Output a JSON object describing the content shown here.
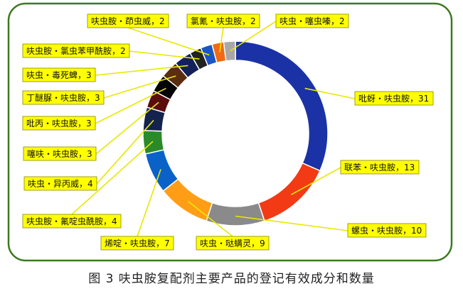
{
  "caption": "图 3   呋虫胺复配剂主要产品的登记有效成分和数量",
  "chart_data": {
    "type": "pie",
    "variant": "donut",
    "title": "",
    "slices": [
      {
        "label": "吡蚜・呋虫胺，31",
        "name": "吡蚜・呋虫胺",
        "value": 31,
        "color": "#1a32a6"
      },
      {
        "label": "联苯・呋虫胺，13",
        "name": "联苯・呋虫胺",
        "value": 13,
        "color": "#f23a14"
      },
      {
        "label": "螺虫・呋虫胺，10",
        "name": "螺虫・呋虫胺",
        "value": 10,
        "color": "#8a8a8a"
      },
      {
        "label": "呋虫・哒螨灵，9",
        "name": "呋虫・哒螨灵",
        "value": 9,
        "color": "#ff9e16"
      },
      {
        "label": "烯啶・呋虫胺，7",
        "name": "烯啶・呋虫胺",
        "value": 7,
        "color": "#0a62c8"
      },
      {
        "label": "呋虫胺・氟啶虫酰胺，4",
        "name": "呋虫胺・氟啶虫酰胺",
        "value": 4,
        "color": "#2a8a2a"
      },
      {
        "label": "呋虫・异丙威，4",
        "name": "呋虫・异丙威",
        "value": 4,
        "color": "#14224e"
      },
      {
        "label": "噻呋・呋虫胺，3",
        "name": "噻呋・呋虫胺",
        "value": 3,
        "color": "#5a0d0d"
      },
      {
        "label": "吡丙・呋虫胺，3",
        "name": "吡丙・呋虫胺",
        "value": 3,
        "color": "#050505"
      },
      {
        "label": "丁醚脲・呋虫胺，3",
        "name": "丁醚脲・呋虫胺",
        "value": 3,
        "color": "#5a2c10"
      },
      {
        "label": "呋虫・毒死蜱，3",
        "name": "呋虫・毒死蜱",
        "value": 3,
        "color": "#14205a"
      },
      {
        "label": "呋虫胺・氯虫苯甲酰胺，2",
        "name": "呋虫胺・氯虫苯甲酰胺",
        "value": 2,
        "color": "#222222"
      },
      {
        "label": "呋虫胺・茚虫威，2",
        "name": "呋虫胺・茚虫威",
        "value": 2,
        "color": "#1a55c8"
      },
      {
        "label": "氯氰・呋虫胺，2",
        "name": "氯氰・呋虫胺",
        "value": 2,
        "color": "#f26a10"
      },
      {
        "label": "呋虫・噻虫嗪，2",
        "name": "呋虫・噻虫嗪",
        "value": 2,
        "color": "#a8a8a8"
      }
    ],
    "legend": "none",
    "data_labels": "outside-with-leader-lines"
  }
}
